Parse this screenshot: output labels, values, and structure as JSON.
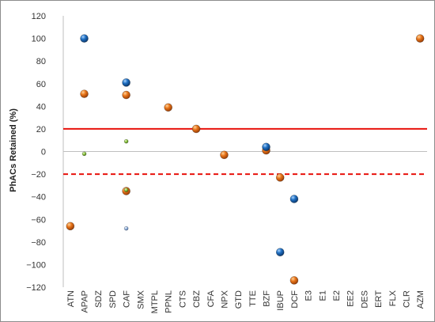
{
  "chart_data": {
    "type": "scatter",
    "title": "",
    "ylabel": "PhACs Retained (%)",
    "xlabel": "",
    "ylim": [
      -120,
      120
    ],
    "yticks": [
      120,
      100,
      80,
      60,
      40,
      20,
      0,
      -20,
      -40,
      -60,
      -80,
      -100,
      -120
    ],
    "categories": [
      "ATN",
      "APAP",
      "SDZ",
      "SPD",
      "CAF",
      "SMX",
      "MTPL",
      "PPNL",
      "CTS",
      "CBZ",
      "CFA",
      "NPX",
      "GTD",
      "TTE",
      "BZF",
      "IBUP",
      "DCF",
      "E3",
      "E1",
      "E2",
      "EE2",
      "DES",
      "ERT",
      "FLX",
      "CLR",
      "AZM"
    ],
    "grid": false,
    "legend": "none",
    "reference_lines": [
      {
        "y": 20,
        "style": "solid",
        "color": "#e8120c"
      },
      {
        "y": -20,
        "style": "dashed",
        "color": "#e8120c"
      }
    ],
    "series": [
      {
        "color": "#e8751a",
        "marker": "large",
        "points": [
          {
            "x": "ATN",
            "y": -66
          },
          {
            "x": "APAP",
            "y": 51
          },
          {
            "x": "CAF",
            "y": 50
          },
          {
            "x": "CAF",
            "y": -35
          },
          {
            "x": "PPNL",
            "y": 39
          },
          {
            "x": "CBZ",
            "y": 20
          },
          {
            "x": "NPX",
            "y": -3
          },
          {
            "x": "BZF",
            "y": 1
          },
          {
            "x": "IBUP",
            "y": -23
          },
          {
            "x": "DCF",
            "y": -114
          },
          {
            "x": "AZM",
            "y": 100
          }
        ]
      },
      {
        "color": "#1f6fc2",
        "marker": "large",
        "points": [
          {
            "x": "APAP",
            "y": 100
          },
          {
            "x": "CAF",
            "y": 61
          },
          {
            "x": "BZF",
            "y": 4
          },
          {
            "x": "IBUP",
            "y": -89
          },
          {
            "x": "DCF",
            "y": -42
          }
        ]
      },
      {
        "color": "#8cc43e",
        "marker": "small",
        "points": [
          {
            "x": "APAP",
            "y": -2
          },
          {
            "x": "CAF",
            "y": 9
          },
          {
            "x": "CAF",
            "y": -34
          }
        ]
      },
      {
        "color": "#9db9e0",
        "marker": "small",
        "points": [
          {
            "x": "CAF",
            "y": -68
          }
        ]
      }
    ]
  }
}
